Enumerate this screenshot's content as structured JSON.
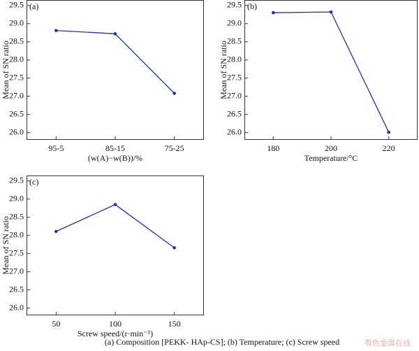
{
  "chart_data": [
    {
      "type": "line",
      "label": "(a)",
      "xlabel": "(w(A)−w(B))/%",
      "ylabel": "Mean of SN ratio",
      "categories": [
        "95-5",
        "85-15",
        "75-25"
      ],
      "series": [
        {
          "color": "#2233a0",
          "values": [
            28.81,
            28.72,
            27.08
          ]
        }
      ],
      "ylim": [
        25.8,
        29.65
      ],
      "yticks": [
        {
          "value": 26,
          "label": "26.0"
        },
        26.5,
        {
          "value": 27,
          "label": "27.0"
        },
        27.5,
        {
          "value": 28,
          "label": "28.0"
        },
        28.5,
        {
          "value": 29,
          "label": "29.0"
        },
        29.5
      ]
    },
    {
      "type": "line",
      "label": "(b)",
      "xlabel": "Temperature/°C",
      "ylabel": "Mean of SN ratio",
      "categories": [
        "180",
        "200",
        "220"
      ],
      "series": [
        {
          "color": "#2233a0",
          "values": [
            29.3,
            29.32,
            26.01
          ]
        }
      ],
      "ylim": [
        25.8,
        29.65
      ],
      "yticks": [
        {
          "value": 26,
          "label": "26.0"
        },
        26.5,
        {
          "value": 27,
          "label": "27.0"
        },
        27.5,
        {
          "value": 28,
          "label": "28.0"
        },
        28.5,
        {
          "value": 29,
          "label": "29.0"
        },
        29.5
      ]
    },
    {
      "type": "line",
      "label": "(c)",
      "xlabel": "Screw speed/(r·min⁻¹)",
      "ylabel": "Mean of SN ratio",
      "categories": [
        "50",
        "100",
        "150"
      ],
      "series": [
        {
          "color": "#2233a0",
          "values": [
            28.11,
            28.85,
            27.66
          ]
        }
      ],
      "ylim": [
        25.8,
        29.65
      ],
      "yticks": [
        {
          "value": 26,
          "label": "26.0"
        },
        26.5,
        {
          "value": 27,
          "label": "27.0"
        },
        27.5,
        {
          "value": 28,
          "label": "28.0"
        },
        28.5,
        {
          "value": 29,
          "label": "29.0"
        },
        29.5
      ]
    }
  ],
  "caption": "(a)  Composition  [PEKK- HAp-CS]; (b) Temperature; (c) Screw speed",
  "watermark": "有色金属在线"
}
